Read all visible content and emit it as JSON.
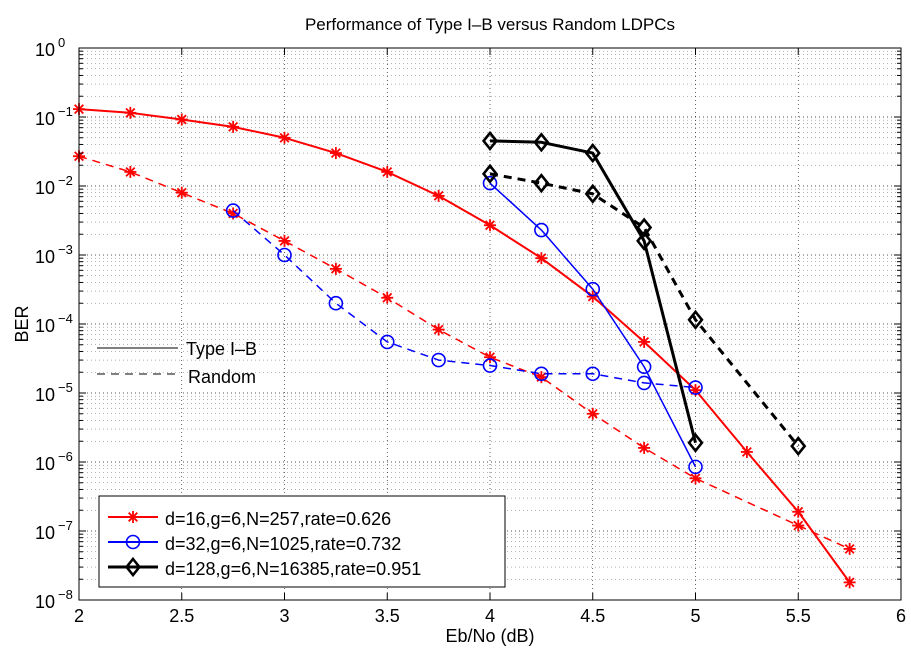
{
  "chart_data": {
    "type": "line",
    "title": "Performance of Type I–B versus Random LDPCs",
    "xlabel": "Eb/No (dB)",
    "ylabel": "BER",
    "xlim": [
      2,
      6
    ],
    "ylim_log10": [
      -8,
      0
    ],
    "y_scale": "log",
    "grid": true,
    "x_ticks": [
      2,
      2.5,
      3,
      3.5,
      4,
      4.5,
      5,
      5.5,
      6
    ],
    "x_tick_labels": [
      "2",
      "2.5",
      "3",
      "3.5",
      "4",
      "4.5",
      "5",
      "5.5",
      "6"
    ],
    "y_tick_exponents": [
      0,
      -1,
      -2,
      -3,
      -4,
      -5,
      -6,
      -7,
      -8
    ],
    "y_tick_base": "10",
    "y_tick_exponent_labels": [
      "0",
      "−1",
      "−2",
      "−3",
      "−4",
      "−5",
      "−6",
      "−7",
      "−8"
    ],
    "style_legend": [
      {
        "label": "Type I–B",
        "dash": "solid"
      },
      {
        "label": "Random",
        "dash": "dashed"
      }
    ],
    "legend": [
      {
        "label": "d=16,g=6,N=257,rate=0.626",
        "color": "#ff0000",
        "marker": "star"
      },
      {
        "label": "d=32,g=6,N=1025,rate=0.732",
        "color": "#0000ff",
        "marker": "circle"
      },
      {
        "label": "d=128,g=6,N=16385,rate=0.951",
        "color": "#000000",
        "marker": "diamond"
      }
    ],
    "series": [
      {
        "name": "d=16 Type I-B",
        "color": "#ff0000",
        "marker": "star",
        "dash": "solid",
        "width": 2,
        "x": [
          2,
          2.25,
          2.5,
          2.75,
          3,
          3.25,
          3.5,
          3.75,
          4,
          4.25,
          4.5,
          4.75,
          5,
          5.25,
          5.5,
          5.75
        ],
        "y": [
          0.13,
          0.115,
          0.092,
          0.072,
          0.05,
          0.03,
          0.016,
          0.0072,
          0.0027,
          0.0009,
          0.00025,
          5.5e-05,
          1.1e-05,
          1.4e-06,
          1.9e-07,
          1.8e-08
        ]
      },
      {
        "name": "d=16 Random",
        "color": "#ff0000",
        "marker": "star",
        "dash": "dashed",
        "width": 1.5,
        "x": [
          2,
          2.25,
          2.5,
          2.75,
          3,
          3.25,
          3.5,
          3.75,
          4,
          4.25,
          4.5,
          4.75,
          5,
          5.5,
          5.75
        ],
        "y": [
          0.027,
          0.016,
          0.008,
          0.004,
          0.0016,
          0.00063,
          0.00024,
          8.3e-05,
          3.3e-05,
          1.7e-05,
          5e-06,
          1.6e-06,
          5.8e-07,
          1.2e-07,
          5.5e-08
        ]
      },
      {
        "name": "d=32 Type I-B",
        "color": "#0000ff",
        "marker": "circle",
        "dash": "solid",
        "width": 1.5,
        "x": [
          4,
          4.25,
          4.5,
          4.75,
          5
        ],
        "y": [
          0.011,
          0.0023,
          0.00032,
          2.4e-05,
          8.5e-07
        ]
      },
      {
        "name": "d=32 Random",
        "color": "#0000ff",
        "marker": "circle",
        "dash": "dashed",
        "width": 1.5,
        "x": [
          2.75,
          3,
          3.25,
          3.5,
          3.75,
          4,
          4.25,
          4.5,
          4.75,
          5
        ],
        "y": [
          0.0044,
          0.001,
          0.0002,
          5.5e-05,
          3e-05,
          2.5e-05,
          1.9e-05,
          1.9e-05,
          1.4e-05,
          1.2e-05
        ]
      },
      {
        "name": "d=128 Type I-B",
        "color": "#000000",
        "marker": "diamond",
        "dash": "solid",
        "width": 3,
        "x": [
          4,
          4.25,
          4.5,
          4.75,
          5
        ],
        "y": [
          0.045,
          0.043,
          0.03,
          0.0016,
          1.9e-06
        ]
      },
      {
        "name": "d=128 Random",
        "color": "#000000",
        "marker": "diamond",
        "dash": "dashed",
        "width": 3,
        "x": [
          4,
          4.25,
          4.5,
          4.75,
          5,
          5.5
        ],
        "y": [
          0.015,
          0.011,
          0.0077,
          0.0025,
          0.000115,
          1.7e-06
        ]
      }
    ]
  }
}
